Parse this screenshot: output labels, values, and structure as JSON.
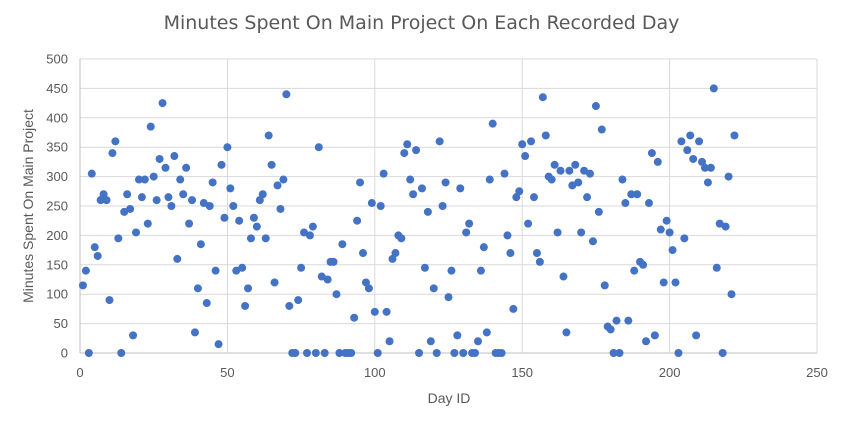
{
  "chart_data": {
    "type": "scatter",
    "title": "Minutes Spent On Main Project On Each Recorded Day",
    "xlabel": "Day ID",
    "ylabel": "Minutes Spent On Main Project",
    "xlim": [
      0,
      250
    ],
    "ylim": [
      0,
      500
    ],
    "xticks": [
      0,
      50,
      100,
      150,
      200,
      250
    ],
    "yticks": [
      0,
      50,
      100,
      150,
      200,
      250,
      300,
      350,
      400,
      450,
      500
    ],
    "grid": true,
    "legend": "none",
    "marker_color": "#4472C4",
    "points": [
      [
        1,
        115
      ],
      [
        2,
        140
      ],
      [
        3,
        0
      ],
      [
        4,
        305
      ],
      [
        5,
        180
      ],
      [
        6,
        165
      ],
      [
        7,
        260
      ],
      [
        8,
        270
      ],
      [
        9,
        260
      ],
      [
        10,
        90
      ],
      [
        11,
        340
      ],
      [
        12,
        360
      ],
      [
        13,
        195
      ],
      [
        14,
        0
      ],
      [
        15,
        240
      ],
      [
        16,
        270
      ],
      [
        17,
        245
      ],
      [
        18,
        30
      ],
      [
        19,
        205
      ],
      [
        20,
        295
      ],
      [
        21,
        265
      ],
      [
        22,
        295
      ],
      [
        23,
        220
      ],
      [
        24,
        385
      ],
      [
        25,
        300
      ],
      [
        26,
        260
      ],
      [
        27,
        330
      ],
      [
        28,
        425
      ],
      [
        29,
        315
      ],
      [
        30,
        265
      ],
      [
        31,
        250
      ],
      [
        32,
        335
      ],
      [
        33,
        160
      ],
      [
        34,
        295
      ],
      [
        35,
        270
      ],
      [
        36,
        315
      ],
      [
        37,
        220
      ],
      [
        38,
        260
      ],
      [
        39,
        35
      ],
      [
        40,
        110
      ],
      [
        41,
        185
      ],
      [
        42,
        255
      ],
      [
        43,
        85
      ],
      [
        44,
        250
      ],
      [
        45,
        290
      ],
      [
        46,
        140
      ],
      [
        47,
        15
      ],
      [
        48,
        320
      ],
      [
        49,
        230
      ],
      [
        50,
        350
      ],
      [
        51,
        280
      ],
      [
        52,
        250
      ],
      [
        53,
        140
      ],
      [
        54,
        225
      ],
      [
        55,
        145
      ],
      [
        56,
        80
      ],
      [
        57,
        110
      ],
      [
        58,
        195
      ],
      [
        59,
        230
      ],
      [
        60,
        215
      ],
      [
        61,
        260
      ],
      [
        62,
        270
      ],
      [
        63,
        195
      ],
      [
        64,
        370
      ],
      [
        65,
        320
      ],
      [
        66,
        120
      ],
      [
        67,
        285
      ],
      [
        68,
        245
      ],
      [
        69,
        295
      ],
      [
        70,
        440
      ],
      [
        71,
        80
      ],
      [
        72,
        0
      ],
      [
        73,
        0
      ],
      [
        74,
        90
      ],
      [
        75,
        145
      ],
      [
        76,
        205
      ],
      [
        77,
        0
      ],
      [
        78,
        200
      ],
      [
        79,
        215
      ],
      [
        80,
        0
      ],
      [
        81,
        350
      ],
      [
        82,
        130
      ],
      [
        83,
        0
      ],
      [
        84,
        125
      ],
      [
        85,
        155
      ],
      [
        86,
        155
      ],
      [
        87,
        100
      ],
      [
        88,
        0
      ],
      [
        89,
        185
      ],
      [
        90,
        0
      ],
      [
        91,
        0
      ],
      [
        92,
        0
      ],
      [
        93,
        60
      ],
      [
        94,
        225
      ],
      [
        95,
        290
      ],
      [
        96,
        170
      ],
      [
        97,
        120
      ],
      [
        98,
        110
      ],
      [
        99,
        255
      ],
      [
        100,
        70
      ],
      [
        101,
        0
      ],
      [
        102,
        250
      ],
      [
        103,
        305
      ],
      [
        104,
        70
      ],
      [
        105,
        20
      ],
      [
        106,
        160
      ],
      [
        107,
        170
      ],
      [
        108,
        200
      ],
      [
        109,
        195
      ],
      [
        110,
        340
      ],
      [
        111,
        355
      ],
      [
        112,
        295
      ],
      [
        113,
        270
      ],
      [
        114,
        345
      ],
      [
        115,
        0
      ],
      [
        116,
        280
      ],
      [
        117,
        145
      ],
      [
        118,
        240
      ],
      [
        119,
        20
      ],
      [
        120,
        110
      ],
      [
        121,
        0
      ],
      [
        122,
        360
      ],
      [
        123,
        250
      ],
      [
        124,
        290
      ],
      [
        125,
        95
      ],
      [
        126,
        140
      ],
      [
        127,
        0
      ],
      [
        128,
        30
      ],
      [
        129,
        280
      ],
      [
        130,
        0
      ],
      [
        131,
        205
      ],
      [
        132,
        220
      ],
      [
        133,
        0
      ],
      [
        134,
        0
      ],
      [
        135,
        20
      ],
      [
        136,
        140
      ],
      [
        137,
        180
      ],
      [
        138,
        35
      ],
      [
        139,
        295
      ],
      [
        140,
        390
      ],
      [
        141,
        0
      ],
      [
        142,
        0
      ],
      [
        143,
        0
      ],
      [
        144,
        305
      ],
      [
        145,
        200
      ],
      [
        146,
        170
      ],
      [
        147,
        75
      ],
      [
        148,
        265
      ],
      [
        149,
        275
      ],
      [
        150,
        355
      ],
      [
        151,
        335
      ],
      [
        152,
        220
      ],
      [
        153,
        360
      ],
      [
        154,
        265
      ],
      [
        155,
        170
      ],
      [
        156,
        155
      ],
      [
        157,
        435
      ],
      [
        158,
        370
      ],
      [
        159,
        300
      ],
      [
        160,
        295
      ],
      [
        161,
        320
      ],
      [
        162,
        205
      ],
      [
        163,
        310
      ],
      [
        164,
        130
      ],
      [
        165,
        35
      ],
      [
        166,
        310
      ],
      [
        167,
        285
      ],
      [
        168,
        320
      ],
      [
        169,
        290
      ],
      [
        170,
        205
      ],
      [
        171,
        310
      ],
      [
        172,
        265
      ],
      [
        173,
        305
      ],
      [
        174,
        190
      ],
      [
        175,
        420
      ],
      [
        176,
        240
      ],
      [
        177,
        380
      ],
      [
        178,
        115
      ],
      [
        179,
        45
      ],
      [
        180,
        40
      ],
      [
        181,
        0
      ],
      [
        182,
        55
      ],
      [
        183,
        0
      ],
      [
        184,
        295
      ],
      [
        185,
        255
      ],
      [
        186,
        55
      ],
      [
        187,
        270
      ],
      [
        188,
        140
      ],
      [
        189,
        270
      ],
      [
        190,
        155
      ],
      [
        191,
        150
      ],
      [
        192,
        20
      ],
      [
        193,
        255
      ],
      [
        194,
        340
      ],
      [
        195,
        30
      ],
      [
        196,
        325
      ],
      [
        197,
        210
      ],
      [
        198,
        120
      ],
      [
        199,
        225
      ],
      [
        200,
        205
      ],
      [
        201,
        175
      ],
      [
        202,
        120
      ],
      [
        203,
        0
      ],
      [
        204,
        360
      ],
      [
        205,
        195
      ],
      [
        206,
        345
      ],
      [
        207,
        370
      ],
      [
        208,
        330
      ],
      [
        209,
        30
      ],
      [
        210,
        360
      ],
      [
        211,
        325
      ],
      [
        212,
        315
      ],
      [
        213,
        290
      ],
      [
        214,
        315
      ],
      [
        215,
        450
      ],
      [
        216,
        145
      ],
      [
        217,
        220
      ],
      [
        218,
        0
      ],
      [
        219,
        215
      ],
      [
        220,
        300
      ],
      [
        221,
        100
      ],
      [
        222,
        370
      ]
    ]
  }
}
